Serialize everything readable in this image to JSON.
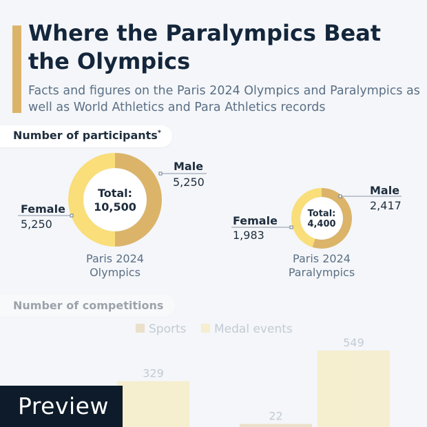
{
  "header": {
    "title": "Where the Paralympics Beat the Olympics",
    "subtitle": "Facts and figures on the Paris 2024 Olympics and Paralympics as well as World Athletics and Para Athletics records"
  },
  "sections": {
    "participants_label": "Number of participants",
    "participants_footnote_mark": "*",
    "competitions_label": "Number of competitions"
  },
  "chart_data": [
    {
      "type": "donut",
      "series": [
        {
          "name": "Paris 2024 Olympics",
          "center_label": "Total:",
          "center_value": "10,500",
          "slices": [
            {
              "label": "Male",
              "value": 5250,
              "value_text": "5,250",
              "color": "#dbb46a"
            },
            {
              "label": "Female",
              "value": 5250,
              "value_text": "5,250",
              "color": "#f9de79"
            }
          ]
        },
        {
          "name": "Paris 2024 Paralympics",
          "center_label": "Total:",
          "center_value": "4,400",
          "slices": [
            {
              "label": "Male",
              "value": 2417,
              "value_text": "2,417",
              "color": "#dbb46a"
            },
            {
              "label": "Female",
              "value": 1983,
              "value_text": "1,983",
              "color": "#f9de79"
            }
          ]
        }
      ]
    },
    {
      "type": "bar",
      "legend": [
        {
          "name": "Sports",
          "color": "#dbb46a"
        },
        {
          "name": "Medal events",
          "color": "#f9de79"
        }
      ],
      "bars": [
        {
          "series": "Medal events",
          "value": 329,
          "label": "329"
        },
        {
          "series": "Sports",
          "value": 22,
          "label": "22"
        },
        {
          "series": "Medal events",
          "value": 549,
          "label": "549"
        }
      ]
    }
  ],
  "badge": {
    "text": "Preview"
  }
}
